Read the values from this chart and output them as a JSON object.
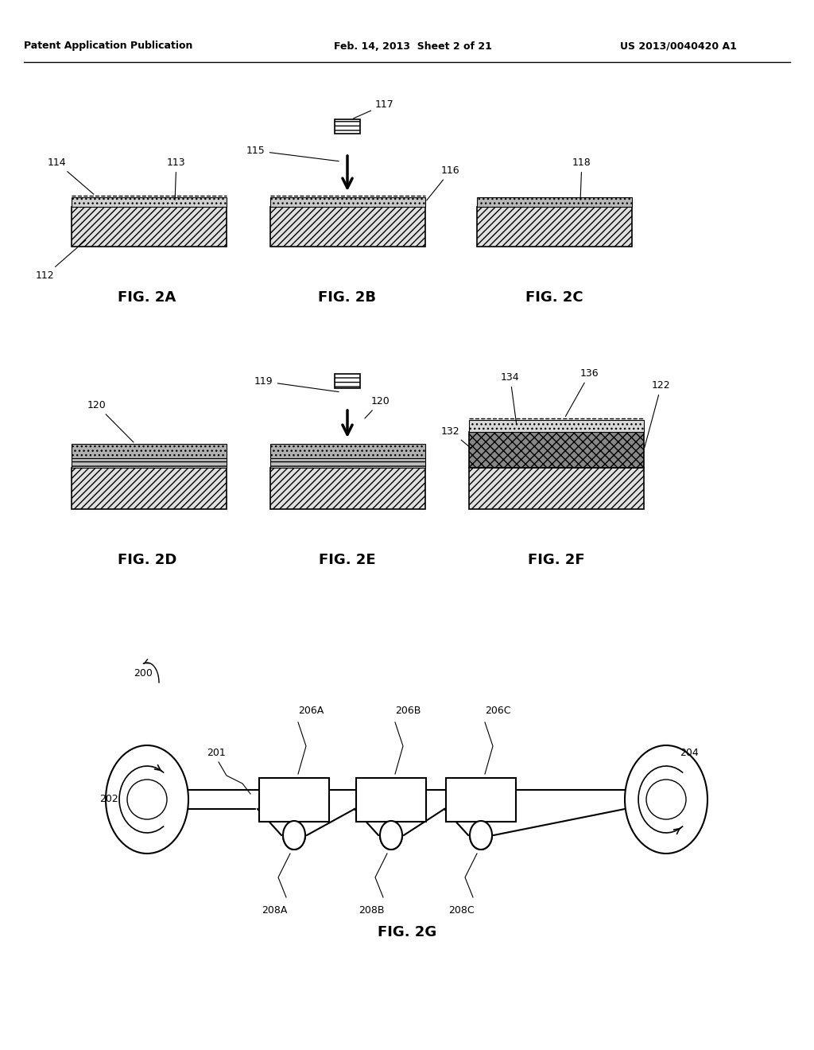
{
  "bg_color": "#ffffff",
  "header_left": "Patent Application Publication",
  "header_mid": "Feb. 14, 2013  Sheet 2 of 21",
  "header_right": "US 2013/0040420 A1"
}
